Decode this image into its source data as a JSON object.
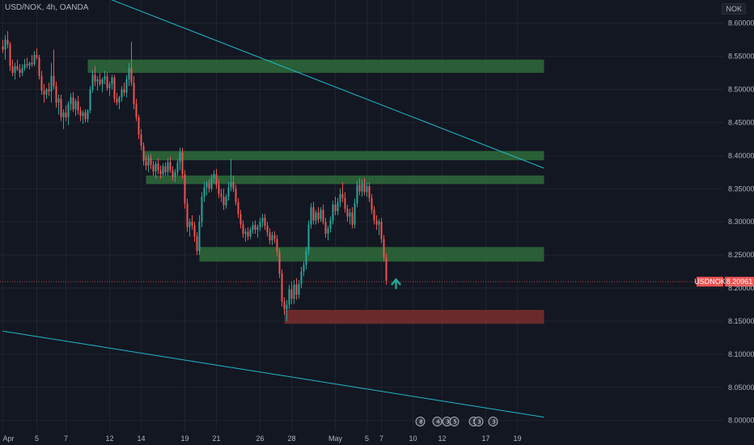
{
  "header": {
    "title": "USD/NOK, 4h, OANDA",
    "currency": "NOK"
  },
  "colors": {
    "background": "#131722",
    "up": "#26a69a",
    "down": "#ef5350",
    "zone_green": "#2e6b3a",
    "zone_red": "#7a2e2e",
    "trendline": "#22b8c8",
    "arrow": "#26a69a"
  },
  "chart_data": {
    "type": "candlestick",
    "symbol": "USD/NOK",
    "timeframe": "4h",
    "source": "OANDA",
    "ylim": [
      7.985,
      8.635
    ],
    "y_ticks": [
      "8.60000",
      "8.55000",
      "8.50000",
      "8.45000",
      "8.40000",
      "8.35000",
      "8.30000",
      "8.25000",
      "8.20000",
      "8.15000",
      "8.10000",
      "8.05000",
      "8.00000"
    ],
    "x_ticks": [
      {
        "label": "Apr",
        "bar": 0
      },
      {
        "label": "5",
        "bar": 14
      },
      {
        "label": "7",
        "bar": 26
      },
      {
        "label": "12",
        "bar": 44
      },
      {
        "label": "14",
        "bar": 57
      },
      {
        "label": "19",
        "bar": 75
      },
      {
        "label": "21",
        "bar": 88
      },
      {
        "label": "26",
        "bar": 106
      },
      {
        "label": "28",
        "bar": 119
      },
      {
        "label": "May",
        "bar": 137
      },
      {
        "label": "5",
        "bar": 150
      },
      {
        "label": "7",
        "bar": 156
      },
      {
        "label": "10",
        "bar": 169
      },
      {
        "label": "12",
        "bar": 181
      },
      {
        "label": "17",
        "bar": 199
      },
      {
        "label": "19",
        "bar": 212
      }
    ],
    "last_price": {
      "label": "USDNOK",
      "value": "8.20961"
    },
    "zones": [
      {
        "color": "green",
        "y_top": 8.545,
        "y_bottom": 8.525,
        "bar_from": 35,
        "bar_to": 223
      },
      {
        "color": "green",
        "y_top": 8.407,
        "y_bottom": 8.393,
        "bar_from": 58,
        "bar_to": 223
      },
      {
        "color": "green",
        "y_top": 8.37,
        "y_bottom": 8.357,
        "bar_from": 59,
        "bar_to": 223
      },
      {
        "color": "green",
        "y_top": 8.262,
        "y_bottom": 8.24,
        "bar_from": 81,
        "bar_to": 223
      },
      {
        "color": "red",
        "y_top": 8.167,
        "y_bottom": 8.146,
        "bar_from": 116,
        "bar_to": 223
      }
    ],
    "trendlines": [
      {
        "from": {
          "bar": 38,
          "y": 8.645
        },
        "to": {
          "bar": 223,
          "y": 8.381
        }
      },
      {
        "from": {
          "bar": 0,
          "y": 8.135
        },
        "to": {
          "bar": 223,
          "y": 8.005
        }
      }
    ],
    "arrow": {
      "bar": 162,
      "y": 8.207,
      "direction": "up"
    },
    "events": [
      {
        "bar": 172,
        "label": "8"
      },
      {
        "bar": 179,
        "label": "4"
      },
      {
        "bar": 183,
        "label": "3"
      },
      {
        "bar": 186,
        "label": "5"
      },
      {
        "bar": 194,
        "label": "5"
      },
      {
        "bar": 196,
        "label": "3"
      },
      {
        "bar": 202,
        "label": "3"
      }
    ],
    "candles": [
      {
        "o": 8.565,
        "h": 8.575,
        "l": 8.555,
        "c": 8.56
      },
      {
        "o": 8.56,
        "h": 8.582,
        "l": 8.545,
        "c": 8.575
      },
      {
        "o": 8.575,
        "h": 8.588,
        "l": 8.562,
        "c": 8.568
      },
      {
        "o": 8.568,
        "h": 8.572,
        "l": 8.528,
        "c": 8.535
      },
      {
        "o": 8.535,
        "h": 8.545,
        "l": 8.52,
        "c": 8.525
      },
      {
        "o": 8.525,
        "h": 8.54,
        "l": 8.515,
        "c": 8.535
      },
      {
        "o": 8.535,
        "h": 8.545,
        "l": 8.528,
        "c": 8.53
      },
      {
        "o": 8.53,
        "h": 8.538,
        "l": 8.518,
        "c": 8.525
      },
      {
        "o": 8.525,
        "h": 8.538,
        "l": 8.52,
        "c": 8.532
      },
      {
        "o": 8.532,
        "h": 8.546,
        "l": 8.528,
        "c": 8.538
      },
      {
        "o": 8.538,
        "h": 8.548,
        "l": 8.532,
        "c": 8.536
      },
      {
        "o": 8.536,
        "h": 8.542,
        "l": 8.53,
        "c": 8.54
      },
      {
        "o": 8.54,
        "h": 8.552,
        "l": 8.534,
        "c": 8.538
      },
      {
        "o": 8.538,
        "h": 8.558,
        "l": 8.535,
        "c": 8.552
      },
      {
        "o": 8.552,
        "h": 8.562,
        "l": 8.545,
        "c": 8.548
      },
      {
        "o": 8.548,
        "h": 8.552,
        "l": 8.515,
        "c": 8.52
      },
      {
        "o": 8.52,
        "h": 8.528,
        "l": 8.492,
        "c": 8.498
      },
      {
        "o": 8.498,
        "h": 8.508,
        "l": 8.48,
        "c": 8.492
      },
      {
        "o": 8.492,
        "h": 8.502,
        "l": 8.486,
        "c": 8.5
      },
      {
        "o": 8.5,
        "h": 8.51,
        "l": 8.49,
        "c": 8.497
      },
      {
        "o": 8.497,
        "h": 8.54,
        "l": 8.48,
        "c": 8.52
      },
      {
        "o": 8.52,
        "h": 8.56,
        "l": 8.5,
        "c": 8.505
      },
      {
        "o": 8.505,
        "h": 8.512,
        "l": 8.472,
        "c": 8.48
      },
      {
        "o": 8.48,
        "h": 8.492,
        "l": 8.462,
        "c": 8.486
      },
      {
        "o": 8.486,
        "h": 8.492,
        "l": 8.452,
        "c": 8.458
      },
      {
        "o": 8.458,
        "h": 8.47,
        "l": 8.44,
        "c": 8.465
      },
      {
        "o": 8.465,
        "h": 8.476,
        "l": 8.452,
        "c": 8.458
      },
      {
        "o": 8.458,
        "h": 8.482,
        "l": 8.446,
        "c": 8.478
      },
      {
        "o": 8.478,
        "h": 8.494,
        "l": 8.468,
        "c": 8.488
      },
      {
        "o": 8.488,
        "h": 8.496,
        "l": 8.466,
        "c": 8.47
      },
      {
        "o": 8.47,
        "h": 8.486,
        "l": 8.46,
        "c": 8.482
      },
      {
        "o": 8.482,
        "h": 8.49,
        "l": 8.462,
        "c": 8.468
      },
      {
        "o": 8.468,
        "h": 8.474,
        "l": 8.452,
        "c": 8.46
      },
      {
        "o": 8.46,
        "h": 8.468,
        "l": 8.448,
        "c": 8.465
      },
      {
        "o": 8.465,
        "h": 8.47,
        "l": 8.45,
        "c": 8.455
      },
      {
        "o": 8.455,
        "h": 8.47,
        "l": 8.45,
        "c": 8.468
      },
      {
        "o": 8.468,
        "h": 8.505,
        "l": 8.464,
        "c": 8.5
      },
      {
        "o": 8.5,
        "h": 8.53,
        "l": 8.495,
        "c": 8.522
      },
      {
        "o": 8.522,
        "h": 8.535,
        "l": 8.505,
        "c": 8.512
      },
      {
        "o": 8.512,
        "h": 8.52,
        "l": 8.498,
        "c": 8.515
      },
      {
        "o": 8.515,
        "h": 8.525,
        "l": 8.505,
        "c": 8.508
      },
      {
        "o": 8.508,
        "h": 8.518,
        "l": 8.496,
        "c": 8.515
      },
      {
        "o": 8.515,
        "h": 8.528,
        "l": 8.508,
        "c": 8.52
      },
      {
        "o": 8.52,
        "h": 8.526,
        "l": 8.498,
        "c": 8.502
      },
      {
        "o": 8.502,
        "h": 8.512,
        "l": 8.49,
        "c": 8.508
      },
      {
        "o": 8.508,
        "h": 8.522,
        "l": 8.5,
        "c": 8.518
      },
      {
        "o": 8.518,
        "h": 8.522,
        "l": 8.48,
        "c": 8.486
      },
      {
        "o": 8.486,
        "h": 8.495,
        "l": 8.476,
        "c": 8.48
      },
      {
        "o": 8.48,
        "h": 8.49,
        "l": 8.47,
        "c": 8.488
      },
      {
        "o": 8.488,
        "h": 8.505,
        "l": 8.482,
        "c": 8.5
      },
      {
        "o": 8.5,
        "h": 8.51,
        "l": 8.49,
        "c": 8.495
      },
      {
        "o": 8.495,
        "h": 8.522,
        "l": 8.488,
        "c": 8.515
      },
      {
        "o": 8.515,
        "h": 8.54,
        "l": 8.505,
        "c": 8.532
      },
      {
        "o": 8.532,
        "h": 8.572,
        "l": 8.505,
        "c": 8.51
      },
      {
        "o": 8.51,
        "h": 8.52,
        "l": 8.47,
        "c": 8.478
      },
      {
        "o": 8.478,
        "h": 8.486,
        "l": 8.452,
        "c": 8.458
      },
      {
        "o": 8.458,
        "h": 8.462,
        "l": 8.425,
        "c": 8.432
      },
      {
        "o": 8.432,
        "h": 8.44,
        "l": 8.408,
        "c": 8.415
      },
      {
        "o": 8.415,
        "h": 8.42,
        "l": 8.385,
        "c": 8.392
      },
      {
        "o": 8.392,
        "h": 8.4,
        "l": 8.378,
        "c": 8.385
      },
      {
        "o": 8.385,
        "h": 8.402,
        "l": 8.375,
        "c": 8.396
      },
      {
        "o": 8.396,
        "h": 8.402,
        "l": 8.38,
        "c": 8.386
      },
      {
        "o": 8.386,
        "h": 8.392,
        "l": 8.37,
        "c": 8.376
      },
      {
        "o": 8.376,
        "h": 8.392,
        "l": 8.365,
        "c": 8.388
      },
      {
        "o": 8.388,
        "h": 8.396,
        "l": 8.372,
        "c": 8.378
      },
      {
        "o": 8.378,
        "h": 8.385,
        "l": 8.365,
        "c": 8.372
      },
      {
        "o": 8.372,
        "h": 8.388,
        "l": 8.368,
        "c": 8.384
      },
      {
        "o": 8.384,
        "h": 8.39,
        "l": 8.37,
        "c": 8.375
      },
      {
        "o": 8.375,
        "h": 8.396,
        "l": 8.37,
        "c": 8.39
      },
      {
        "o": 8.39,
        "h": 8.398,
        "l": 8.374,
        "c": 8.378
      },
      {
        "o": 8.378,
        "h": 8.384,
        "l": 8.362,
        "c": 8.368
      },
      {
        "o": 8.368,
        "h": 8.38,
        "l": 8.36,
        "c": 8.375
      },
      {
        "o": 8.375,
        "h": 8.395,
        "l": 8.37,
        "c": 8.39
      },
      {
        "o": 8.39,
        "h": 8.412,
        "l": 8.378,
        "c": 8.405
      },
      {
        "o": 8.405,
        "h": 8.412,
        "l": 8.365,
        "c": 8.372
      },
      {
        "o": 8.372,
        "h": 8.378,
        "l": 8.32,
        "c": 8.328
      },
      {
        "o": 8.328,
        "h": 8.335,
        "l": 8.285,
        "c": 8.292
      },
      {
        "o": 8.292,
        "h": 8.305,
        "l": 8.278,
        "c": 8.3
      },
      {
        "o": 8.3,
        "h": 8.31,
        "l": 8.288,
        "c": 8.295
      },
      {
        "o": 8.295,
        "h": 8.3,
        "l": 8.27,
        "c": 8.278
      },
      {
        "o": 8.278,
        "h": 8.284,
        "l": 8.25,
        "c": 8.256
      },
      {
        "o": 8.256,
        "h": 8.31,
        "l": 8.25,
        "c": 8.3
      },
      {
        "o": 8.3,
        "h": 8.345,
        "l": 8.292,
        "c": 8.338
      },
      {
        "o": 8.338,
        "h": 8.36,
        "l": 8.33,
        "c": 8.352
      },
      {
        "o": 8.352,
        "h": 8.362,
        "l": 8.34,
        "c": 8.358
      },
      {
        "o": 8.358,
        "h": 8.364,
        "l": 8.344,
        "c": 8.35
      },
      {
        "o": 8.35,
        "h": 8.372,
        "l": 8.346,
        "c": 8.366
      },
      {
        "o": 8.366,
        "h": 8.378,
        "l": 8.358,
        "c": 8.372
      },
      {
        "o": 8.372,
        "h": 8.38,
        "l": 8.35,
        "c": 8.356
      },
      {
        "o": 8.356,
        "h": 8.364,
        "l": 8.336,
        "c": 8.342
      },
      {
        "o": 8.342,
        "h": 8.35,
        "l": 8.33,
        "c": 8.338
      },
      {
        "o": 8.338,
        "h": 8.35,
        "l": 8.318,
        "c": 8.325
      },
      {
        "o": 8.325,
        "h": 8.342,
        "l": 8.32,
        "c": 8.338
      },
      {
        "o": 8.338,
        "h": 8.36,
        "l": 8.332,
        "c": 8.352
      },
      {
        "o": 8.352,
        "h": 8.395,
        "l": 8.346,
        "c": 8.36
      },
      {
        "o": 8.36,
        "h": 8.37,
        "l": 8.345,
        "c": 8.35
      },
      {
        "o": 8.35,
        "h": 8.356,
        "l": 8.325,
        "c": 8.33
      },
      {
        "o": 8.33,
        "h": 8.336,
        "l": 8.306,
        "c": 8.312
      },
      {
        "o": 8.312,
        "h": 8.318,
        "l": 8.29,
        "c": 8.296
      },
      {
        "o": 8.296,
        "h": 8.302,
        "l": 8.276,
        "c": 8.282
      },
      {
        "o": 8.282,
        "h": 8.29,
        "l": 8.27,
        "c": 8.285
      },
      {
        "o": 8.285,
        "h": 8.292,
        "l": 8.272,
        "c": 8.278
      },
      {
        "o": 8.278,
        "h": 8.292,
        "l": 8.274,
        "c": 8.288
      },
      {
        "o": 8.288,
        "h": 8.3,
        "l": 8.282,
        "c": 8.295
      },
      {
        "o": 8.295,
        "h": 8.302,
        "l": 8.282,
        "c": 8.288
      },
      {
        "o": 8.288,
        "h": 8.296,
        "l": 8.276,
        "c": 8.292
      },
      {
        "o": 8.292,
        "h": 8.306,
        "l": 8.286,
        "c": 8.3
      },
      {
        "o": 8.3,
        "h": 8.312,
        "l": 8.292,
        "c": 8.306
      },
      {
        "o": 8.306,
        "h": 8.312,
        "l": 8.288,
        "c": 8.294
      },
      {
        "o": 8.294,
        "h": 8.3,
        "l": 8.278,
        "c": 8.284
      },
      {
        "o": 8.284,
        "h": 8.29,
        "l": 8.266,
        "c": 8.272
      },
      {
        "o": 8.272,
        "h": 8.285,
        "l": 8.265,
        "c": 8.28
      },
      {
        "o": 8.28,
        "h": 8.286,
        "l": 8.268,
        "c": 8.274
      },
      {
        "o": 8.274,
        "h": 8.28,
        "l": 8.248,
        "c": 8.255
      },
      {
        "o": 8.255,
        "h": 8.26,
        "l": 8.215,
        "c": 8.222
      },
      {
        "o": 8.222,
        "h": 8.228,
        "l": 8.172,
        "c": 8.18
      },
      {
        "o": 8.18,
        "h": 8.186,
        "l": 8.16,
        "c": 8.168
      },
      {
        "o": 8.168,
        "h": 8.182,
        "l": 8.15,
        "c": 8.175
      },
      {
        "o": 8.175,
        "h": 8.205,
        "l": 8.168,
        "c": 8.198
      },
      {
        "o": 8.198,
        "h": 8.21,
        "l": 8.176,
        "c": 8.184
      },
      {
        "o": 8.184,
        "h": 8.212,
        "l": 8.176,
        "c": 8.205
      },
      {
        "o": 8.205,
        "h": 8.215,
        "l": 8.182,
        "c": 8.19
      },
      {
        "o": 8.19,
        "h": 8.212,
        "l": 8.184,
        "c": 8.206
      },
      {
        "o": 8.206,
        "h": 8.232,
        "l": 8.2,
        "c": 8.225
      },
      {
        "o": 8.225,
        "h": 8.24,
        "l": 8.218,
        "c": 8.235
      },
      {
        "o": 8.235,
        "h": 8.262,
        "l": 8.228,
        "c": 8.256
      },
      {
        "o": 8.256,
        "h": 8.302,
        "l": 8.25,
        "c": 8.296
      },
      {
        "o": 8.296,
        "h": 8.328,
        "l": 8.29,
        "c": 8.322
      },
      {
        "o": 8.322,
        "h": 8.33,
        "l": 8.296,
        "c": 8.302
      },
      {
        "o": 8.302,
        "h": 8.318,
        "l": 8.296,
        "c": 8.314
      },
      {
        "o": 8.314,
        "h": 8.322,
        "l": 8.298,
        "c": 8.304
      },
      {
        "o": 8.304,
        "h": 8.322,
        "l": 8.3,
        "c": 8.318
      },
      {
        "o": 8.318,
        "h": 8.326,
        "l": 8.296,
        "c": 8.3
      },
      {
        "o": 8.3,
        "h": 8.306,
        "l": 8.276,
        "c": 8.282
      },
      {
        "o": 8.282,
        "h": 8.294,
        "l": 8.272,
        "c": 8.29
      },
      {
        "o": 8.29,
        "h": 8.308,
        "l": 8.284,
        "c": 8.302
      },
      {
        "o": 8.302,
        "h": 8.332,
        "l": 8.296,
        "c": 8.326
      },
      {
        "o": 8.326,
        "h": 8.338,
        "l": 8.31,
        "c": 8.316
      },
      {
        "o": 8.316,
        "h": 8.336,
        "l": 8.31,
        "c": 8.33
      },
      {
        "o": 8.33,
        "h": 8.35,
        "l": 8.322,
        "c": 8.342
      },
      {
        "o": 8.342,
        "h": 8.36,
        "l": 8.33,
        "c": 8.336
      },
      {
        "o": 8.336,
        "h": 8.345,
        "l": 8.314,
        "c": 8.32
      },
      {
        "o": 8.32,
        "h": 8.326,
        "l": 8.3,
        "c": 8.308
      },
      {
        "o": 8.308,
        "h": 8.32,
        "l": 8.296,
        "c": 8.314
      },
      {
        "o": 8.314,
        "h": 8.322,
        "l": 8.29,
        "c": 8.296
      },
      {
        "o": 8.296,
        "h": 8.335,
        "l": 8.29,
        "c": 8.328
      },
      {
        "o": 8.328,
        "h": 8.362,
        "l": 8.322,
        "c": 8.356
      },
      {
        "o": 8.356,
        "h": 8.366,
        "l": 8.34,
        "c": 8.346
      },
      {
        "o": 8.346,
        "h": 8.364,
        "l": 8.338,
        "c": 8.358
      },
      {
        "o": 8.358,
        "h": 8.366,
        "l": 8.34,
        "c": 8.345
      },
      {
        "o": 8.345,
        "h": 8.36,
        "l": 8.338,
        "c": 8.354
      },
      {
        "o": 8.354,
        "h": 8.36,
        "l": 8.33,
        "c": 8.336
      },
      {
        "o": 8.336,
        "h": 8.342,
        "l": 8.312,
        "c": 8.318
      },
      {
        "o": 8.318,
        "h": 8.324,
        "l": 8.296,
        "c": 8.302
      },
      {
        "o": 8.302,
        "h": 8.31,
        "l": 8.288,
        "c": 8.296
      },
      {
        "o": 8.296,
        "h": 8.304,
        "l": 8.28,
        "c": 8.3
      },
      {
        "o": 8.3,
        "h": 8.306,
        "l": 8.268,
        "c": 8.274
      },
      {
        "o": 8.274,
        "h": 8.28,
        "l": 8.24,
        "c": 8.246
      },
      {
        "o": 8.246,
        "h": 8.252,
        "l": 8.205,
        "c": 8.211
      }
    ]
  }
}
